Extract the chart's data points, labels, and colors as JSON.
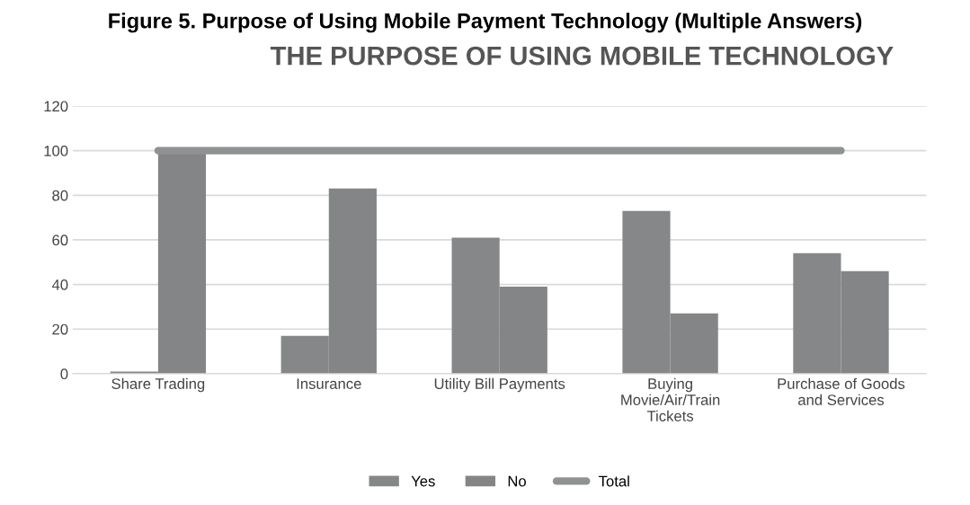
{
  "chart_data": {
    "type": "bar",
    "title": "Figure 5. Purpose of Using Mobile Payment Technology (Multiple Answers)",
    "subtitle": "THE PURPOSE OF USING MOBILE TECHNOLOGY",
    "categories": [
      "Share Trading",
      "Insurance",
      "Utility Bill Payments",
      "Buying\nMovie/Air/Train\nTickets",
      "Purchase of Goods\nand Services"
    ],
    "series": [
      {
        "name": "Yes",
        "color": "#858788",
        "values": [
          1,
          17,
          61,
          73,
          54
        ]
      },
      {
        "name": "No",
        "color": "#838586",
        "values": [
          99,
          83,
          39,
          27,
          46
        ]
      },
      {
        "name": "Total",
        "type": "line",
        "color": "#8f9293",
        "values": [
          100,
          100,
          100,
          100,
          100
        ]
      }
    ],
    "ylim": [
      0,
      120
    ],
    "yticks": [
      0,
      20,
      40,
      60,
      80,
      100,
      120
    ],
    "grid": "y",
    "legend": "bottom",
    "marker": "none",
    "line_style": "solid"
  }
}
